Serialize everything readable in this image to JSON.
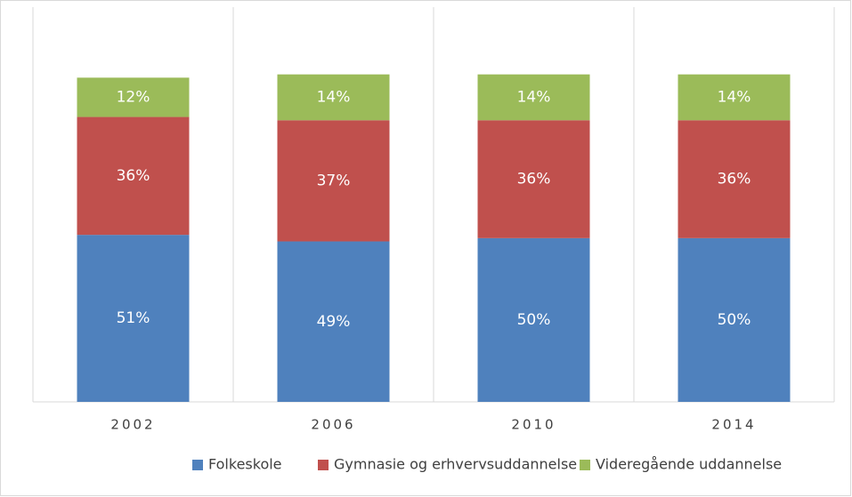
{
  "chart_data": {
    "type": "stacked_bar",
    "categories": [
      "2002",
      "2006",
      "2010",
      "2014"
    ],
    "series": [
      {
        "name": "Folkeskole",
        "color": "#4f81bd",
        "values": [
          51,
          49,
          50,
          50
        ],
        "value_labels": [
          "51%",
          "49%",
          "50%",
          "50%"
        ]
      },
      {
        "name": "Gymnasie og erhvervsuddannelse",
        "color": "#c0504d",
        "values": [
          36,
          37,
          36,
          36
        ],
        "value_labels": [
          "36%",
          "37%",
          "36%",
          "36%"
        ]
      },
      {
        "name": "Videregående uddannelse",
        "color": "#9bbb59",
        "values": [
          12,
          14,
          14,
          14
        ],
        "value_labels": [
          "12%",
          "14%",
          "14%",
          "14%"
        ]
      }
    ],
    "ylim": [
      0,
      120
    ],
    "legend": "bottom"
  }
}
